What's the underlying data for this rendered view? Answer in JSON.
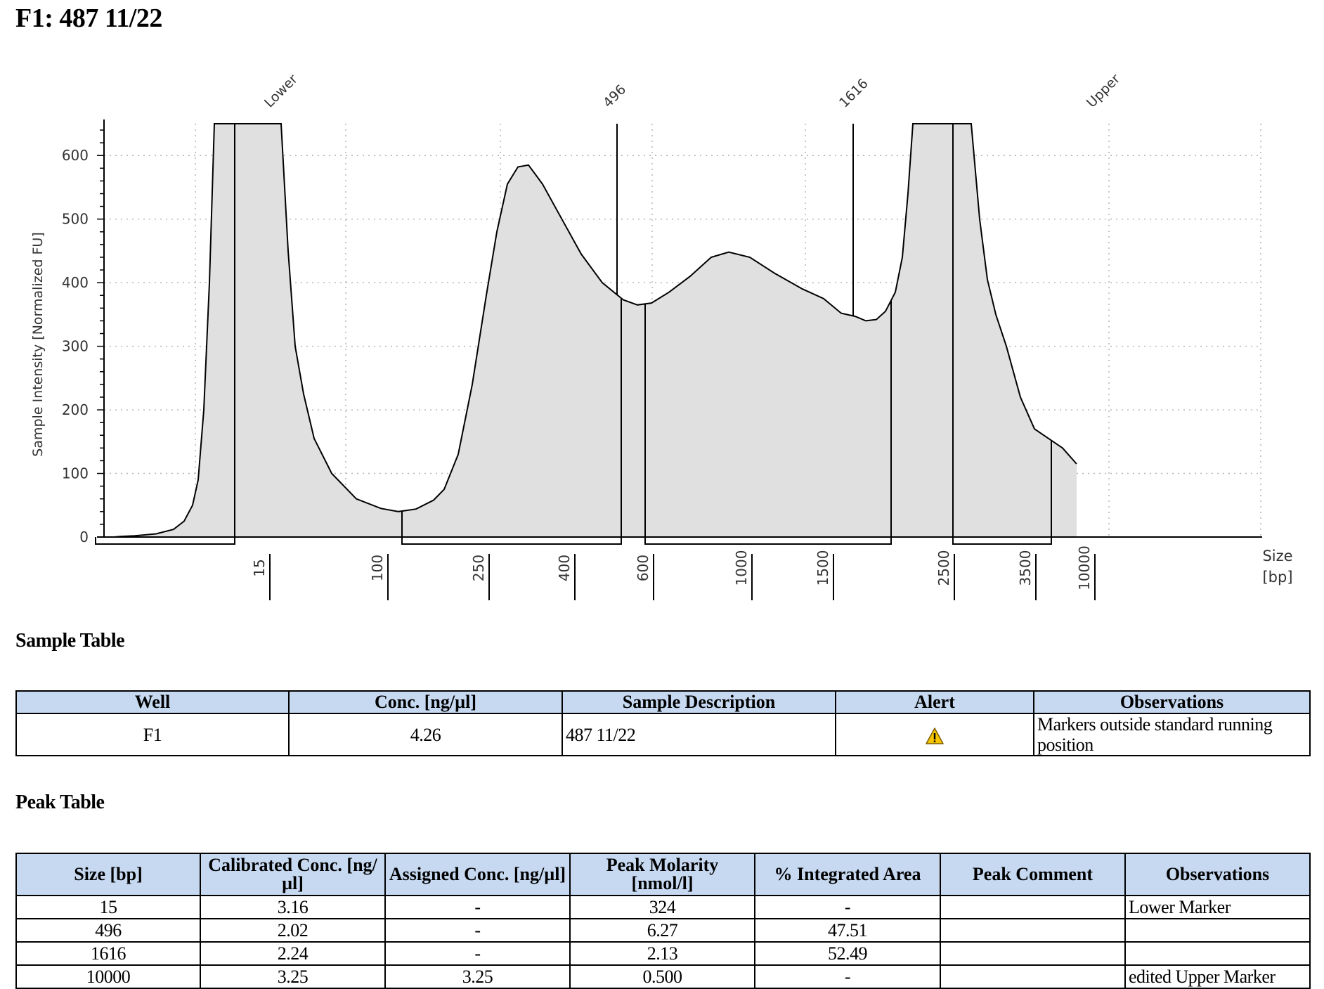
{
  "title": "F1: 487 11/22",
  "chart_data": {
    "type": "area",
    "ylabel": "Sample Intensity [Normalized FU]",
    "xlabel": "Size\n[bp]",
    "ylim": [
      0,
      650
    ],
    "y_ticks": [
      0,
      100,
      200,
      300,
      400,
      500,
      600
    ],
    "x_ladder_ticks": [
      "15",
      "100",
      "250",
      "400",
      "600",
      "1000",
      "1500",
      "2500",
      "3500",
      "10000"
    ],
    "grid": true,
    "peak_labels": [
      "Lower",
      "496",
      "1616",
      "Upper"
    ],
    "fill_color": "#e0e0e0",
    "trace_color": "#000000",
    "profile": [
      {
        "run": 0,
        "intensity": 0
      },
      {
        "run": 10,
        "intensity": 1
      },
      {
        "run": 30,
        "intensity": 2
      },
      {
        "run": 60,
        "intensity": 5
      },
      {
        "run": 85,
        "intensity": 12
      },
      {
        "run": 100,
        "intensity": 25
      },
      {
        "run": 112,
        "intensity": 50
      },
      {
        "run": 120,
        "intensity": 90
      },
      {
        "run": 128,
        "intensity": 200
      },
      {
        "run": 136,
        "intensity": 400
      },
      {
        "run": 143,
        "intensity": 650
      },
      {
        "run": 238,
        "intensity": 650
      },
      {
        "run": 248,
        "intensity": 450
      },
      {
        "run": 258,
        "intensity": 300
      },
      {
        "run": 270,
        "intensity": 225
      },
      {
        "run": 285,
        "intensity": 155
      },
      {
        "run": 310,
        "intensity": 100
      },
      {
        "run": 345,
        "intensity": 60
      },
      {
        "run": 380,
        "intensity": 45
      },
      {
        "run": 405,
        "intensity": 40
      },
      {
        "run": 430,
        "intensity": 44
      },
      {
        "run": 455,
        "intensity": 58
      },
      {
        "run": 470,
        "intensity": 75
      },
      {
        "run": 490,
        "intensity": 130
      },
      {
        "run": 510,
        "intensity": 240
      },
      {
        "run": 530,
        "intensity": 380
      },
      {
        "run": 545,
        "intensity": 480
      },
      {
        "run": 560,
        "intensity": 555
      },
      {
        "run": 575,
        "intensity": 582
      },
      {
        "run": 590,
        "intensity": 585
      },
      {
        "run": 610,
        "intensity": 555
      },
      {
        "run": 635,
        "intensity": 505
      },
      {
        "run": 665,
        "intensity": 445
      },
      {
        "run": 695,
        "intensity": 400
      },
      {
        "run": 725,
        "intensity": 373
      },
      {
        "run": 745,
        "intensity": 365
      },
      {
        "run": 765,
        "intensity": 368
      },
      {
        "run": 790,
        "intensity": 385
      },
      {
        "run": 820,
        "intensity": 410
      },
      {
        "run": 850,
        "intensity": 440
      },
      {
        "run": 875,
        "intensity": 448
      },
      {
        "run": 905,
        "intensity": 440
      },
      {
        "run": 940,
        "intensity": 415
      },
      {
        "run": 980,
        "intensity": 390
      },
      {
        "run": 1010,
        "intensity": 375
      },
      {
        "run": 1035,
        "intensity": 352
      },
      {
        "run": 1055,
        "intensity": 347
      },
      {
        "run": 1070,
        "intensity": 340
      },
      {
        "run": 1085,
        "intensity": 342
      },
      {
        "run": 1098,
        "intensity": 355
      },
      {
        "run": 1112,
        "intensity": 385
      },
      {
        "run": 1122,
        "intensity": 440
      },
      {
        "run": 1130,
        "intensity": 540
      },
      {
        "run": 1137,
        "intensity": 650
      },
      {
        "run": 1220,
        "intensity": 650
      },
      {
        "run": 1232,
        "intensity": 500
      },
      {
        "run": 1243,
        "intensity": 405
      },
      {
        "run": 1255,
        "intensity": 350
      },
      {
        "run": 1270,
        "intensity": 300
      },
      {
        "run": 1290,
        "intensity": 220
      },
      {
        "run": 1310,
        "intensity": 170
      },
      {
        "run": 1330,
        "intensity": 155
      },
      {
        "run": 1350,
        "intensity": 140
      },
      {
        "run": 1370,
        "intensity": 115
      }
    ]
  },
  "sample_table": {
    "heading": "Sample Table",
    "headers": [
      "Well",
      "Conc. [ng/µl]",
      "Sample Description",
      "Alert",
      "Observations"
    ],
    "row": {
      "well": "F1",
      "conc": "4.26",
      "description": "487 11/22",
      "alert_icon": "warning-icon",
      "observations": "Markers outside standard running position"
    }
  },
  "peak_table": {
    "heading": "Peak Table",
    "headers": [
      "Size [bp]",
      "Calibrated Conc. [ng/µl]",
      "Assigned Conc. [ng/µl]",
      "Peak Molarity [nmol/l]",
      "% Integrated Area",
      "Peak Comment",
      "Observations"
    ],
    "rows": [
      [
        "15",
        "3.16",
        "-",
        "324",
        "-",
        "",
        "Lower Marker"
      ],
      [
        "496",
        "2.02",
        "-",
        "6.27",
        "47.51",
        "",
        ""
      ],
      [
        "1616",
        "2.24",
        "-",
        "2.13",
        "52.49",
        "",
        ""
      ],
      [
        "10000",
        "3.25",
        "3.25",
        "0.500",
        "-",
        "",
        "edited Upper Marker"
      ]
    ]
  },
  "colors": {
    "header_bg": "#c6d9f1",
    "warning": "#f5c400"
  }
}
